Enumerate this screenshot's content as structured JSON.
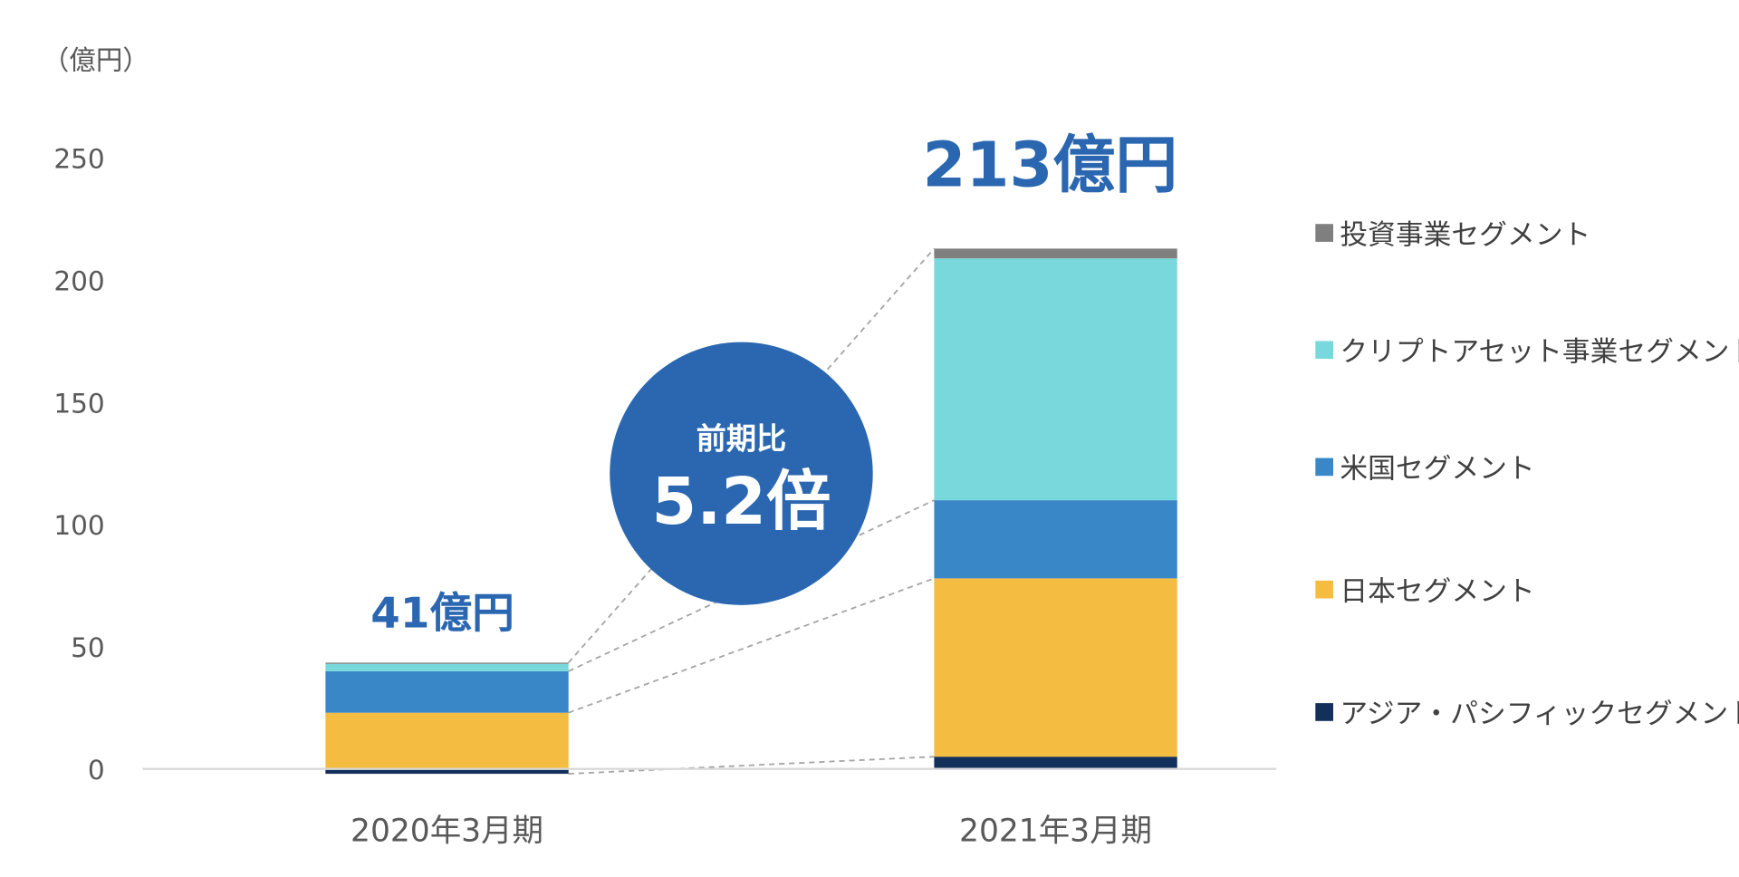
{
  "chart_data": {
    "type": "bar",
    "stacked": true,
    "unit_label": "（億円）",
    "categories": [
      "2020年3月期",
      "2021年3月期"
    ],
    "ylim": [
      0,
      250
    ],
    "yticks": [
      0,
      50,
      100,
      150,
      200,
      250
    ],
    "grid": false,
    "legend_position": "right",
    "series": [
      {
        "name": "アジア・パシフィックセグメント",
        "color": "#12305a",
        "values": [
          -2,
          5
        ]
      },
      {
        "name": "日本セグメント",
        "color": "#f4bd42",
        "values": [
          23,
          73
        ]
      },
      {
        "name": "米国セグメント",
        "color": "#3a87c8",
        "values": [
          17,
          32
        ]
      },
      {
        "name": "クリプトアセット事業セグメント",
        "color": "#78d8dc",
        "values": [
          3,
          99
        ]
      },
      {
        "name": "投資事業セグメント",
        "color": "#7f7f7f",
        "values": [
          0.5,
          4
        ]
      }
    ],
    "totals": [
      "41億円",
      "213億円"
    ],
    "callout": {
      "line1": "前期比",
      "line2": "5.2倍",
      "color": "#2a67b0"
    }
  }
}
